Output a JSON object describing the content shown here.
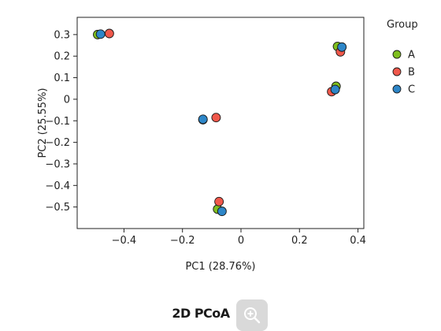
{
  "chart_data": {
    "type": "scatter",
    "xlabel": "PC1 (28.76%)",
    "ylabel": "PC2 (25.55%)",
    "xlim": [
      -0.56,
      0.42
    ],
    "ylim": [
      -0.6,
      0.38
    ],
    "xticks": [
      -0.4,
      -0.2,
      0,
      0.2,
      0.4
    ],
    "xtick_labels": [
      "−0.4",
      "−0.2",
      "0",
      "0.2",
      "0.4"
    ],
    "yticks": [
      0.3,
      0.2,
      0.1,
      0,
      -0.1,
      -0.2,
      -0.3,
      -0.4,
      -0.5
    ],
    "ytick_labels": [
      "0.3",
      "0.2",
      "0.1",
      "0",
      "−0.1",
      "−0.2",
      "−0.3",
      "−0.4",
      "−0.5"
    ],
    "grid": false,
    "legend": {
      "title": "Group",
      "placement": "right"
    },
    "series": [
      {
        "name": "A",
        "color": "#7fbf1e",
        "points": [
          {
            "x": -0.49,
            "y": 0.3
          },
          {
            "x": 0.33,
            "y": 0.245
          },
          {
            "x": 0.325,
            "y": 0.06
          },
          {
            "x": -0.13,
            "y": -0.095
          },
          {
            "x": -0.08,
            "y": -0.51
          }
        ]
      },
      {
        "name": "B",
        "color": "#f0584b",
        "points": [
          {
            "x": -0.45,
            "y": 0.305
          },
          {
            "x": 0.34,
            "y": 0.22
          },
          {
            "x": 0.31,
            "y": 0.035
          },
          {
            "x": -0.085,
            "y": -0.085
          },
          {
            "x": -0.075,
            "y": -0.475
          }
        ]
      },
      {
        "name": "C",
        "color": "#2d86c8",
        "points": [
          {
            "x": -0.48,
            "y": 0.302
          },
          {
            "x": 0.345,
            "y": 0.242
          },
          {
            "x": 0.322,
            "y": 0.045
          },
          {
            "x": -0.13,
            "y": -0.093
          },
          {
            "x": -0.065,
            "y": -0.52
          }
        ]
      }
    ]
  },
  "footer": {
    "title": "2D PCoA",
    "zoom_icon": "zoom-in-icon"
  }
}
